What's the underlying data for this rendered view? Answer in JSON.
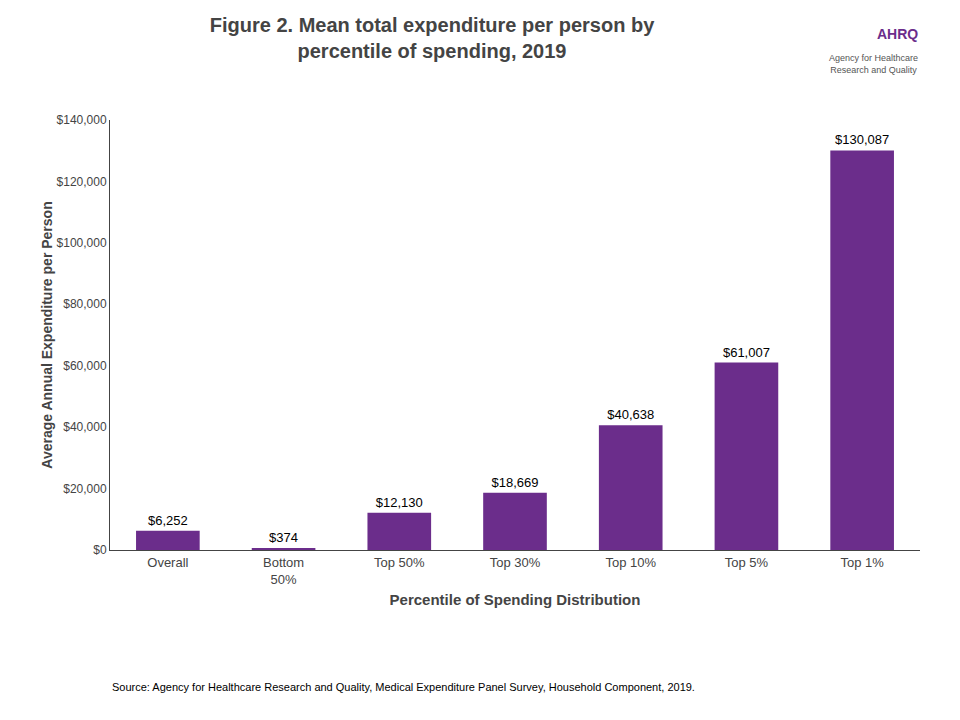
{
  "chart_data": {
    "type": "bar",
    "title": "Figure 2. Mean total expenditure per person by\npercentile of spending, 2019",
    "categories": [
      "Overall",
      "Bottom\n50%",
      "Top 50%",
      "Top 30%",
      "Top 10%",
      "Top 5%",
      "Top 1%"
    ],
    "values": [
      6252,
      374,
      12130,
      18669,
      40638,
      61007,
      130087
    ],
    "value_labels": [
      "$6,252",
      "$374",
      "$12,130",
      "$18,669",
      "$40,638",
      "$61,007",
      "$130,087"
    ],
    "data_labels": true,
    "color": "#6b2d8b",
    "xlabel": "Percentile of Spending Distribution",
    "ylabel": "Average Annual Expenditure per Person",
    "ylim": [
      0,
      140000
    ],
    "yticks": [
      {
        "value": 0,
        "label": "$0"
      },
      {
        "value": 20000,
        "label": "$20,000"
      },
      {
        "value": 40000,
        "label": "$40,000"
      },
      {
        "value": 60000,
        "label": "$60,000"
      },
      {
        "value": 80000,
        "label": "$80,000"
      },
      {
        "value": 100000,
        "label": "$100,000"
      },
      {
        "value": 120000,
        "label": "$120,000"
      },
      {
        "value": 140000,
        "label": "$140,000"
      }
    ],
    "grid": false,
    "annotations": [
      "AHRQ",
      "Agency for Healthcare\nResearch and Quality",
      "Source: Agency for Healthcare Research and Quality, Medical Expenditure Panel Survey, Household Component, 2019."
    ]
  }
}
